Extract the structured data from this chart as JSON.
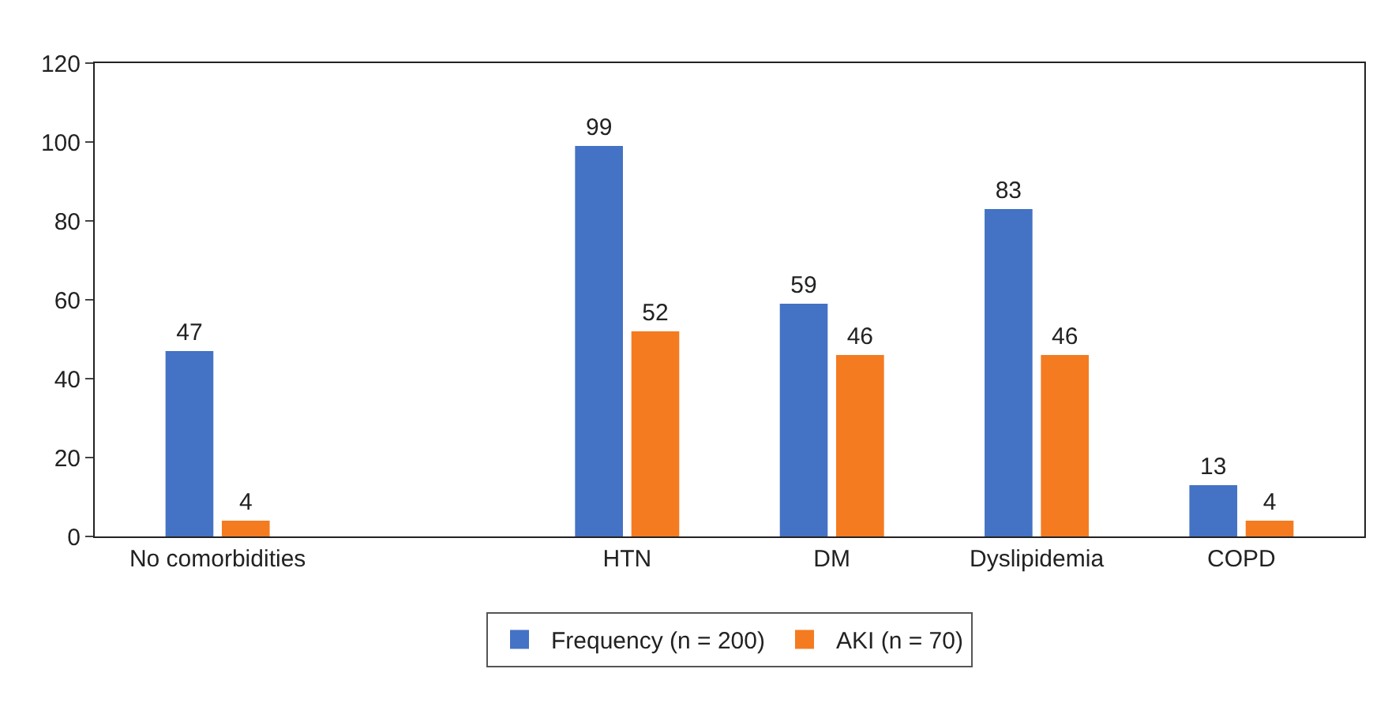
{
  "chart_data": {
    "type": "bar",
    "categories": [
      "No comorbidities",
      null,
      "HTN",
      "DM",
      "Dyslipidemia",
      "COPD"
    ],
    "series": [
      {
        "name": "Frequency (n = 200)",
        "color": "#4472c4",
        "values": [
          47,
          null,
          99,
          59,
          83,
          13
        ]
      },
      {
        "name": "AKI (n = 70)",
        "color": "#f47b20",
        "values": [
          4,
          null,
          52,
          46,
          46,
          4
        ]
      }
    ],
    "ylim": [
      0,
      120
    ],
    "yticks": [
      0,
      20,
      40,
      60,
      80,
      100,
      120
    ],
    "grid": false,
    "legend": "bottom",
    "data_labels": true
  }
}
